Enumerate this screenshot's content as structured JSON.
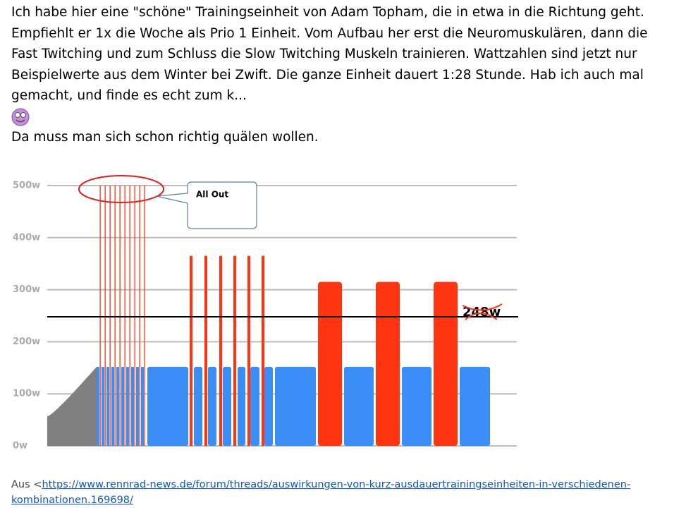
{
  "paragraphs": [
    "Ich habe hier eine \"schöne\" Trainingseinheit von Adam Topham, die in etwa in die Richtung geht.",
    "Empfiehlt er 1x die Woche als Prio 1 Einheit. Vom Aufbau her erst die Neuromuskulären, dann die Fast Twitching und zum Schluss die Slow Twitching Muskeln trainieren. Wattzahlen sind jetzt nur Beispielwerte aus dem Winter bei Zwift. Die ganze Einheit dauert 1:28 Stunde. Hab ich auch mal gemacht, und finde es echt zum k...",
    "Da muss man sich schon richtig quälen wollen."
  ],
  "chart_data": {
    "type": "bar",
    "ylim": [
      0,
      500
    ],
    "yticks": [
      {
        "value": 0,
        "label": "0w"
      },
      {
        "value": 100,
        "label": "100w"
      },
      {
        "value": 200,
        "label": "200w"
      },
      {
        "value": 300,
        "label": "300w"
      },
      {
        "value": 400,
        "label": "400w"
      },
      {
        "value": 500,
        "label": "500w"
      }
    ],
    "grid": true,
    "series": [
      {
        "color": "#808080",
        "values": [
          57,
          152
        ]
      },
      {
        "color": "#3a8ef6",
        "values": [
          152,
          152,
          152,
          152,
          152,
          152,
          152,
          152,
          152,
          152,
          152,
          152,
          152,
          152,
          152,
          152,
          152,
          152,
          152,
          152,
          152
        ]
      },
      {
        "color": "#ff3512",
        "values": [
          500,
          500,
          500,
          500,
          500,
          500,
          500,
          500,
          500,
          500,
          365,
          365,
          365,
          365,
          365,
          365,
          315,
          315,
          315
        ]
      }
    ],
    "threshold": {
      "value": 248,
      "label": "248w"
    },
    "annotation": "All Out"
  },
  "source": {
    "prefix": "Aus <",
    "link": "https://www.rennrad-news.de/forum/threads/auswirkungen-von-kurz-ausdauertrainingseinheiten-in-verschiedenen-kombinationen.169698/"
  }
}
